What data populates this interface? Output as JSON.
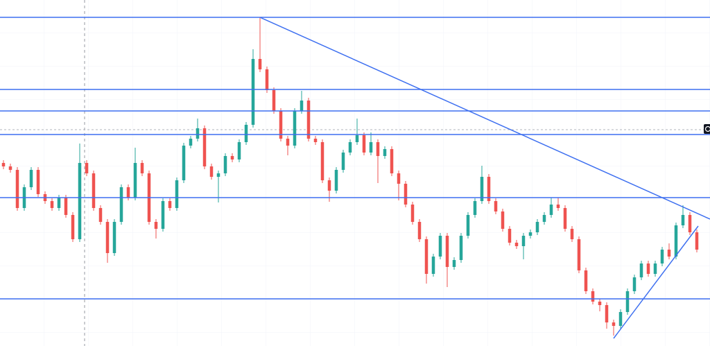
{
  "chart_data": {
    "type": "candlestick",
    "xlim": [
      -0.5,
      101.9
    ],
    "ylim": [
      0,
      499
    ],
    "up_color": "#26a69a",
    "down_color": "#ef5350",
    "line_color": "#3d6ff0",
    "open": [
      264,
      259,
      254,
      199,
      229,
      254,
      219,
      209,
      199,
      214,
      189,
      154,
      264,
      249,
      199,
      179,
      134,
      179,
      229,
      214,
      264,
      249,
      179,
      169,
      209,
      199,
      239,
      289,
      299,
      314,
      259,
      244,
      249,
      274,
      269,
      294,
      319,
      414,
      399,
      369,
      339,
      299,
      289,
      339,
      354,
      299,
      294,
      239,
      224,
      254,
      279,
      294,
      304,
      279,
      294,
      274,
      284,
      249,
      234,
      204,
      179,
      154,
      104,
      129,
      159,
      114,
      124,
      159,
      189,
      209,
      244,
      209,
      194,
      169,
      149,
      144,
      159,
      164,
      179,
      189,
      204,
      199,
      169,
      154,
      109,
      79,
      64,
      59,
      34,
      29,
      49,
      79,
      99,
      119,
      104,
      119,
      139,
      129,
      174,
      189,
      164
    ],
    "high": [
      268,
      263,
      258,
      233,
      258,
      258,
      223,
      213,
      218,
      218,
      193,
      292,
      268,
      253,
      203,
      183,
      183,
      233,
      233,
      286,
      268,
      253,
      183,
      213,
      213,
      243,
      293,
      303,
      328,
      318,
      263,
      253,
      278,
      278,
      298,
      323,
      428,
      474,
      403,
      373,
      343,
      303,
      343,
      368,
      358,
      303,
      298,
      243,
      258,
      283,
      298,
      328,
      308,
      308,
      298,
      288,
      288,
      253,
      238,
      208,
      183,
      158,
      133,
      163,
      163,
      128,
      163,
      193,
      213,
      260,
      248,
      213,
      198,
      173,
      153,
      163,
      168,
      183,
      193,
      214,
      214,
      203,
      173,
      158,
      113,
      83,
      68,
      63,
      38,
      53,
      83,
      103,
      123,
      123,
      123,
      143,
      148,
      178,
      203,
      193,
      168
    ],
    "low": [
      255,
      250,
      195,
      195,
      225,
      215,
      205,
      195,
      195,
      185,
      150,
      150,
      245,
      195,
      175,
      120,
      130,
      175,
      210,
      210,
      245,
      175,
      155,
      165,
      195,
      195,
      235,
      285,
      295,
      255,
      240,
      207,
      245,
      265,
      265,
      290,
      315,
      395,
      365,
      335,
      295,
      275,
      285,
      335,
      295,
      290,
      235,
      208,
      220,
      250,
      275,
      290,
      275,
      275,
      235,
      270,
      245,
      210,
      200,
      175,
      150,
      90,
      100,
      125,
      85,
      110,
      120,
      155,
      185,
      205,
      205,
      190,
      165,
      145,
      140,
      125,
      155,
      160,
      175,
      185,
      195,
      165,
      150,
      105,
      75,
      60,
      50,
      25,
      15,
      25,
      45,
      75,
      95,
      100,
      100,
      115,
      125,
      125,
      170,
      160,
      135
    ],
    "close": [
      259,
      254,
      199,
      229,
      254,
      219,
      209,
      199,
      214,
      189,
      154,
      264,
      249,
      199,
      179,
      134,
      179,
      229,
      214,
      264,
      249,
      179,
      169,
      209,
      199,
      239,
      289,
      299,
      314,
      259,
      244,
      249,
      274,
      269,
      294,
      319,
      414,
      399,
      369,
      339,
      299,
      289,
      339,
      354,
      299,
      294,
      239,
      224,
      254,
      279,
      294,
      304,
      279,
      294,
      274,
      284,
      249,
      234,
      204,
      179,
      154,
      104,
      129,
      159,
      114,
      124,
      159,
      189,
      209,
      244,
      209,
      194,
      169,
      149,
      144,
      159,
      164,
      179,
      189,
      204,
      199,
      169,
      154,
      109,
      79,
      64,
      59,
      34,
      29,
      49,
      79,
      99,
      119,
      104,
      119,
      139,
      129,
      174,
      189,
      164,
      139
    ],
    "horizontal_lines": [
      474,
      370,
      339,
      305,
      214,
      68
    ],
    "current_price": 312,
    "trend_lines": [
      [
        [
          37,
          474
        ],
        [
          101.9,
          183
        ]
      ],
      [
        [
          88,
          11
        ],
        [
          100.2,
          173
        ]
      ]
    ]
  }
}
